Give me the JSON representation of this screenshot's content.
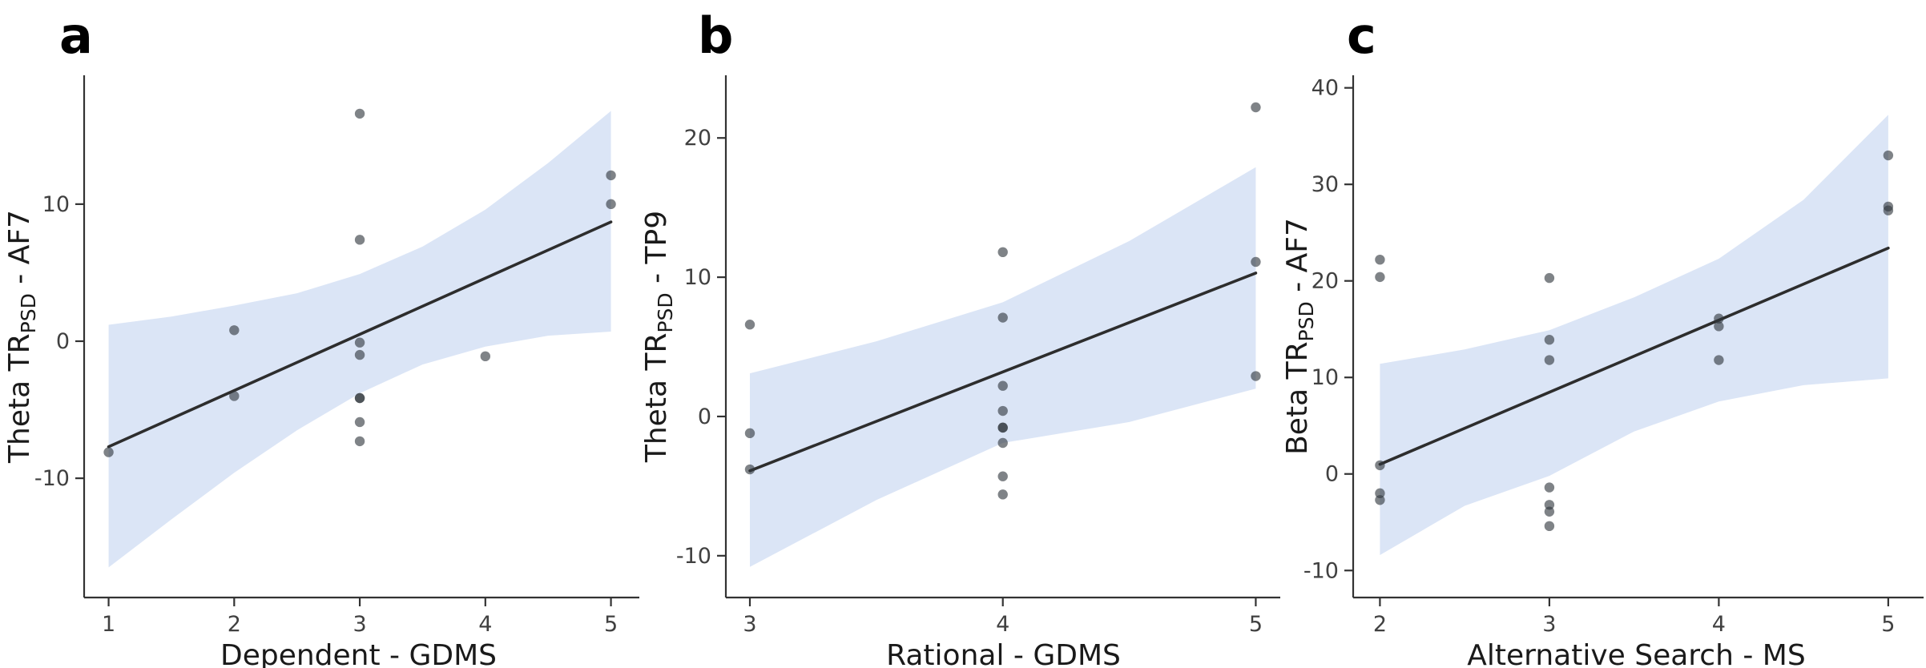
{
  "figure": {
    "background": "#ffffff",
    "colors": {
      "band": "#dbe5f6",
      "regression_line": "#2d2d2d",
      "axis": "#333333",
      "point_fill": "#30373e",
      "point_opacity": 0.62,
      "tick_label": "#404040",
      "axis_title": "#1a1a1a",
      "panel_letter": "#000000"
    }
  },
  "chart_data": [
    {
      "id": "a",
      "type": "scatter",
      "panel_label": "a",
      "xlabel": "Dependent - GDMS",
      "ylabel_prefix": "Theta TR",
      "ylabel_sub": "PSD",
      "ylabel_suffix": " - AF7",
      "x_ticks": [
        1,
        2,
        3,
        4,
        5
      ],
      "y_ticks": [
        -10,
        0,
        10
      ],
      "xlim": [
        0.805,
        5.175
      ],
      "ylim": [
        -18.7,
        19.4
      ],
      "grid": false,
      "legend": false,
      "points": [
        [
          1,
          -8.1
        ],
        [
          2,
          0.8
        ],
        [
          2,
          -4.0
        ],
        [
          3,
          16.6
        ],
        [
          3,
          7.4
        ],
        [
          3,
          -0.1
        ],
        [
          3,
          -1.0
        ],
        [
          3,
          -4.15
        ],
        [
          3,
          -4.15
        ],
        [
          3,
          -5.9
        ],
        [
          3,
          -7.3
        ],
        [
          4,
          -1.1
        ],
        [
          5,
          12.1
        ],
        [
          5,
          10.0
        ]
      ],
      "regression_line": {
        "x1": 1,
        "y1": -7.7,
        "x2": 5,
        "y2": 8.7
      },
      "ci_band": {
        "x": [
          1,
          1.5,
          2,
          2.5,
          3,
          3.5,
          4,
          4.5,
          5
        ],
        "hi": [
          1.2,
          1.8,
          2.6,
          3.5,
          4.9,
          6.9,
          9.6,
          13.0,
          16.8
        ],
        "lo": [
          -16.5,
          -13.0,
          -9.6,
          -6.5,
          -3.8,
          -1.7,
          -0.4,
          0.4,
          0.7
        ]
      }
    },
    {
      "id": "b",
      "type": "scatter",
      "panel_label": "b",
      "xlabel": "Rational - GDMS",
      "ylabel_prefix": "Theta TR",
      "ylabel_sub": "PSD",
      "ylabel_suffix": " - TP9",
      "x_ticks": [
        3,
        4,
        5
      ],
      "y_ticks": [
        -10,
        0,
        10,
        20
      ],
      "xlim": [
        2.905,
        5.1
      ],
      "ylim": [
        -13.0,
        24.5
      ],
      "grid": false,
      "legend": false,
      "points": [
        [
          3,
          6.6
        ],
        [
          3,
          -1.2
        ],
        [
          3,
          -3.8
        ],
        [
          4,
          11.8
        ],
        [
          4,
          7.1
        ],
        [
          4,
          2.2
        ],
        [
          4,
          0.4
        ],
        [
          4,
          -0.8
        ],
        [
          4,
          -0.8
        ],
        [
          4,
          -1.9
        ],
        [
          4,
          -4.3
        ],
        [
          4,
          -5.6
        ],
        [
          5,
          22.2
        ],
        [
          5,
          11.1
        ],
        [
          5,
          2.9
        ]
      ],
      "regression_line": {
        "x1": 3,
        "y1": -3.9,
        "x2": 5,
        "y2": 10.3
      },
      "ci_band": {
        "x": [
          3,
          3.5,
          4,
          4.5,
          5
        ],
        "hi": [
          3.1,
          5.4,
          8.2,
          12.6,
          17.9
        ],
        "lo": [
          -10.8,
          -6.0,
          -1.9,
          -0.4,
          2.0
        ]
      }
    },
    {
      "id": "c",
      "type": "scatter",
      "panel_label": "c",
      "xlabel": "Alternative Search - MS",
      "ylabel_prefix": "Beta TR",
      "ylabel_sub": "PSD",
      "ylabel_suffix": " - AF7",
      "x_ticks": [
        2,
        3,
        4,
        5
      ],
      "y_ticks": [
        -10,
        0,
        10,
        20,
        30,
        40
      ],
      "xlim": [
        1.842,
        5.185
      ],
      "ylim": [
        -12.8,
        41.3
      ],
      "grid": false,
      "legend": false,
      "points": [
        [
          2,
          22.2
        ],
        [
          2,
          20.4
        ],
        [
          2,
          0.9
        ],
        [
          2,
          -2.0
        ],
        [
          2,
          -2.7
        ],
        [
          3,
          20.3
        ],
        [
          3,
          13.9
        ],
        [
          3,
          11.8
        ],
        [
          3,
          -1.4
        ],
        [
          3,
          -3.2
        ],
        [
          3,
          -3.9
        ],
        [
          3,
          -5.4
        ],
        [
          4,
          16.1
        ],
        [
          4,
          15.3
        ],
        [
          4,
          11.8
        ],
        [
          5,
          33.0
        ],
        [
          5,
          27.7
        ],
        [
          5,
          27.3
        ]
      ],
      "regression_line": {
        "x1": 2,
        "y1": 1.0,
        "x2": 5,
        "y2": 23.4
      },
      "ci_band": {
        "x": [
          2,
          2.5,
          3,
          3.5,
          4,
          4.5,
          5
        ],
        "hi": [
          11.4,
          12.9,
          14.9,
          18.3,
          22.3,
          28.4,
          37.2
        ],
        "lo": [
          -8.4,
          -3.3,
          -0.2,
          4.4,
          7.5,
          9.2,
          9.9
        ]
      }
    }
  ]
}
